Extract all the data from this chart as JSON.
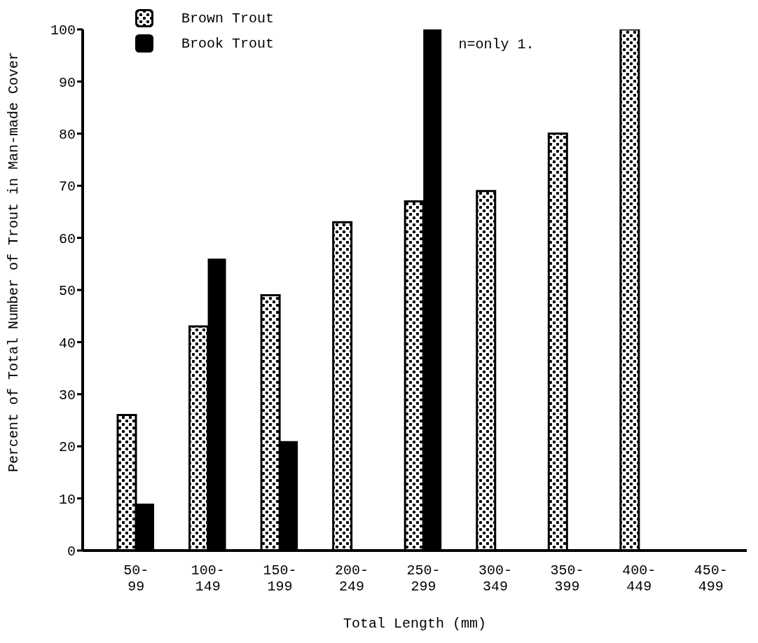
{
  "chart_data": {
    "type": "bar",
    "xlabel": "Total Length (mm)",
    "ylabel": "Percent of Total Number of Trout in Man-made Cover",
    "categories": [
      "50-99",
      "100-149",
      "150-199",
      "200-249",
      "250-299",
      "300-349",
      "350-399",
      "400-449",
      "450-499"
    ],
    "series": [
      {
        "name": "Brown Trout",
        "color": "#000000",
        "values": [
          26,
          43,
          49,
          63,
          67,
          69,
          80,
          100,
          null
        ]
      },
      {
        "name": "Brook Trout",
        "color": "#000000",
        "values": [
          9,
          56,
          21,
          null,
          100,
          null,
          null,
          null,
          null
        ]
      }
    ],
    "ylim": [
      0,
      100
    ],
    "yticks": [
      0,
      10,
      20,
      30,
      40,
      50,
      60,
      70,
      80,
      90,
      100
    ],
    "legend": "top left",
    "annotations": [
      {
        "text": "n=only 1.",
        "x": "250-299",
        "y": 100
      }
    ]
  }
}
